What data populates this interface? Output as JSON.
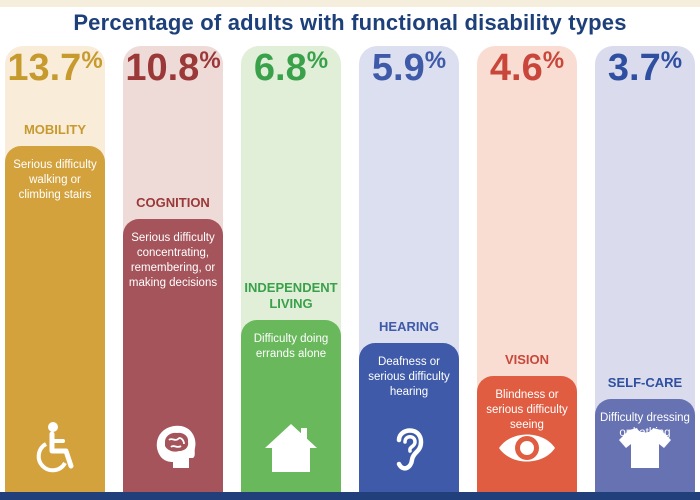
{
  "title": "Percentage of adults with functional disability types",
  "chart_data": {
    "type": "bar",
    "title": "Percentage of adults with functional disability types",
    "categories": [
      "MOBILITY",
      "COGNITION",
      "INDEPENDENT LIVING",
      "HEARING",
      "VISION",
      "SELF-CARE"
    ],
    "values": [
      13.7,
      10.8,
      6.8,
      5.9,
      4.6,
      3.7
    ],
    "value_labels": [
      "13.7",
      "10.8",
      "6.8",
      "5.9",
      "4.6",
      "3.7"
    ],
    "unit": "%",
    "ylim": [
      0,
      16
    ],
    "grid": false,
    "items": [
      {
        "category_lines": [
          "MOBILITY"
        ],
        "description": "Serious difficulty walking or climbing stairs",
        "icon": "wheelchair-icon",
        "color": "#d3a23d",
        "light": "#f9ecd9"
      },
      {
        "category_lines": [
          "COGNITION"
        ],
        "description": "Serious difficulty concentrating, remembering, or making decisions",
        "icon": "brain-icon",
        "color": "#a4545a",
        "light": "#eedad7"
      },
      {
        "category_lines": [
          "INDEPENDENT",
          "LIVING"
        ],
        "description": "Difficulty doing errands alone",
        "icon": "house-icon",
        "color": "#69b85c",
        "light": "#e1eed8"
      },
      {
        "category_lines": [
          "HEARING"
        ],
        "description": "Deafness or serious difficulty hearing",
        "icon": "ear-icon",
        "color": "#3f5aa8",
        "light": "#dcdff0"
      },
      {
        "category_lines": [
          "VISION"
        ],
        "description": "Blindness or serious difficulty seeing",
        "icon": "eye-icon",
        "color": "#e05d42",
        "light": "#f9ddd3"
      },
      {
        "category_lines": [
          "SELF-CARE"
        ],
        "description": "Difficulty dressing or bathing",
        "icon": "shirt-icon",
        "color": "#6772b2",
        "light": "#dadced"
      }
    ],
    "category_colors": [
      "#c79a2e",
      "#9b3838",
      "#3aa14b",
      "#3f5aa8",
      "#c8473a",
      "#2f4fa0"
    ]
  }
}
